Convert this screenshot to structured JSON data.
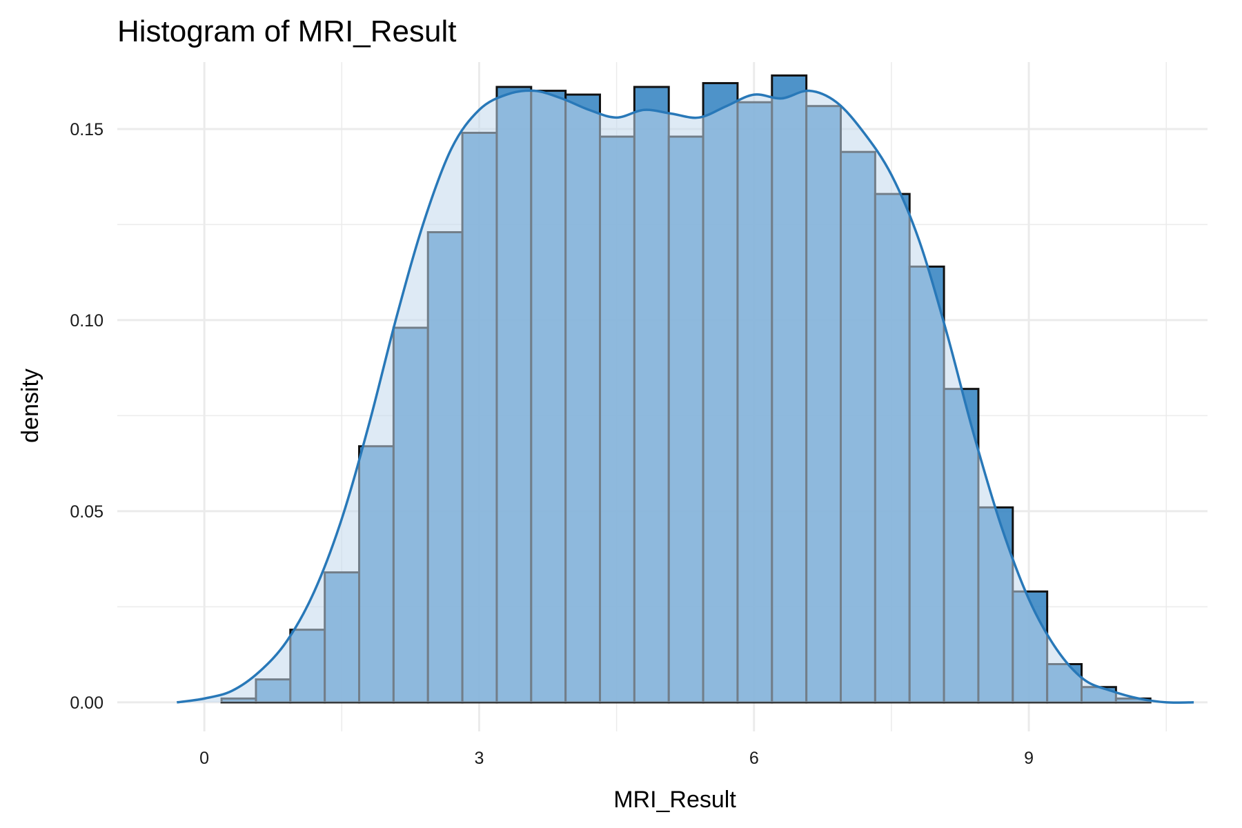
{
  "chart_data": {
    "type": "histogram",
    "title": "Histogram of MRI_Result",
    "xlabel": "MRI_Result",
    "ylabel": "density",
    "xlim": [
      -0.95,
      10.95
    ],
    "ylim": [
      -0.0076,
      0.1675
    ],
    "x_ticks": [
      {
        "value": 0,
        "label": "0"
      },
      {
        "value": 3,
        "label": "3"
      },
      {
        "value": 6,
        "label": "6"
      },
      {
        "value": 9,
        "label": "9"
      }
    ],
    "y_ticks": [
      {
        "value": 0.0,
        "label": "0.00"
      },
      {
        "value": 0.05,
        "label": "0.05"
      },
      {
        "value": 0.1,
        "label": "0.10"
      },
      {
        "value": 0.15,
        "label": "0.15"
      }
    ],
    "grid": true,
    "bins": {
      "start": -0.563,
      "width": 0.3755,
      "values": [
        0.0,
        0.0,
        0.001,
        0.006,
        0.019,
        0.034,
        0.067,
        0.098,
        0.123,
        0.149,
        0.161,
        0.16,
        0.159,
        0.148,
        0.161,
        0.148,
        0.162,
        0.157,
        0.164,
        0.156,
        0.144,
        0.133,
        0.114,
        0.082,
        0.051,
        0.029,
        0.01,
        0.004,
        0.001,
        0.0,
        0.0,
        0.0,
        0.0
      ]
    },
    "density_curve": {
      "x": [
        -0.3,
        0.0,
        0.3,
        0.6,
        0.9,
        1.2,
        1.5,
        1.8,
        2.1,
        2.4,
        2.7,
        3.0,
        3.3,
        3.6,
        3.9,
        4.2,
        4.5,
        4.8,
        5.1,
        5.4,
        5.7,
        6.0,
        6.3,
        6.6,
        6.9,
        7.2,
        7.5,
        7.8,
        8.1,
        8.4,
        8.7,
        9.0,
        9.3,
        9.6,
        9.9,
        10.2,
        10.5,
        10.8
      ],
      "y": [
        0.0,
        0.001,
        0.003,
        0.008,
        0.016,
        0.029,
        0.048,
        0.073,
        0.101,
        0.126,
        0.145,
        0.155,
        0.159,
        0.16,
        0.158,
        0.155,
        0.153,
        0.155,
        0.154,
        0.153,
        0.156,
        0.159,
        0.158,
        0.16,
        0.157,
        0.149,
        0.138,
        0.121,
        0.097,
        0.07,
        0.046,
        0.027,
        0.014,
        0.006,
        0.003,
        0.001,
        0.0,
        0.0
      ]
    },
    "colors": {
      "bar_fill": "#3b87c3",
      "bar_stroke": "#111111",
      "density_fill": "#c2d9ec",
      "density_line": "#2878b8",
      "grid": "#ebebeb"
    }
  }
}
